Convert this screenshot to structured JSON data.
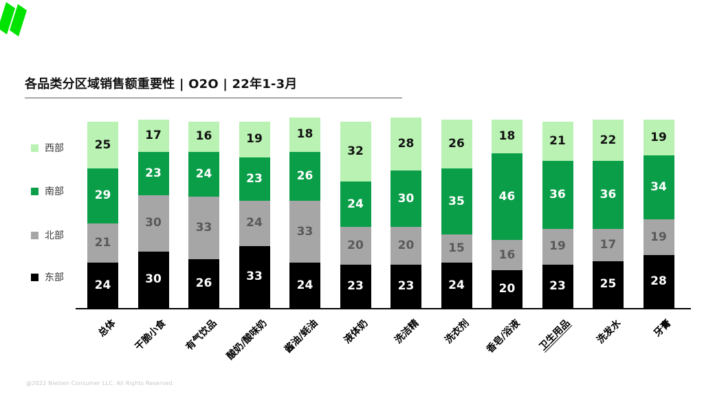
{
  "brand": {
    "logo_icon": "nielsen-logo",
    "logo_color": "#00e300"
  },
  "title": "各品类分区域销售额重要性 | O2O | 22年1-3月",
  "footer": "@2022 Nielsen Consumer LLC. All Rights Reserved.",
  "chart_data": {
    "type": "bar",
    "stacked": true,
    "title": "各品类分区域销售额重要性 | O2O | 22年1-3月",
    "ylim": [
      0,
      100
    ],
    "grid": false,
    "legend_position": "left",
    "value_labels": true,
    "legend": [
      "西部",
      "南部",
      "北部",
      "东部"
    ],
    "categories": [
      "总体",
      "干脆小食",
      "有气饮品",
      "酸奶/酸味奶",
      "酱油/蚝油",
      "液体奶",
      "洗洁精",
      "洗衣剂",
      "香皂/浴液",
      "卫生用品",
      "洗发水",
      "牙膏"
    ],
    "emphasized_category": "卫生用品",
    "series": [
      {
        "name": "东部",
        "color": "#000000",
        "label_color": "#ffffff",
        "values": [
          24,
          30,
          26,
          33,
          24,
          23,
          23,
          24,
          20,
          23,
          25,
          28
        ]
      },
      {
        "name": "北部",
        "color": "#a6a6a6",
        "label_color": "#595959",
        "values": [
          21,
          30,
          33,
          24,
          33,
          20,
          20,
          15,
          16,
          19,
          17,
          19
        ]
      },
      {
        "name": "南部",
        "color": "#0a9e49",
        "label_color": "#ffffff",
        "values": [
          29,
          23,
          24,
          23,
          26,
          24,
          30,
          35,
          46,
          36,
          36,
          34
        ]
      },
      {
        "name": "西部",
        "color": "#b9f2b2",
        "label_color": "#111111",
        "values": [
          25,
          17,
          16,
          19,
          18,
          32,
          28,
          26,
          18,
          21,
          22,
          19
        ]
      }
    ],
    "series_order": "bottom_to_top"
  }
}
